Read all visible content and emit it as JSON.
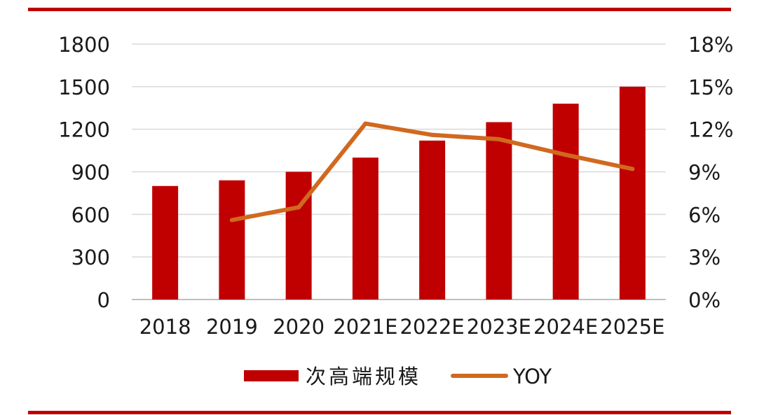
{
  "colors": {
    "bar": "#c00000",
    "line": "#d0691f",
    "rule": "#c00000",
    "grid": "#d9d9d9",
    "text": "#1a1a1a"
  },
  "chart_data": {
    "type": "bar",
    "categories": [
      "2018",
      "2019",
      "2020",
      "2021E",
      "2022E",
      "2023E",
      "2024E",
      "2025E"
    ],
    "series": [
      {
        "name": "次高端规模",
        "type": "bar",
        "axis": "left",
        "values": [
          800,
          840,
          900,
          1000,
          1120,
          1250,
          1380,
          1500
        ]
      },
      {
        "name": "YOY",
        "type": "line",
        "axis": "right",
        "values": [
          null,
          5.6,
          6.5,
          12.4,
          11.6,
          11.3,
          10.2,
          9.2
        ]
      }
    ],
    "ylim": [
      0,
      1800
    ],
    "yticks": [
      "0",
      "300",
      "600",
      "900",
      "1200",
      "1500",
      "1800"
    ],
    "y2lim": [
      0,
      18
    ],
    "y2ticks": [
      "0%",
      "3%",
      "6%",
      "9%",
      "12%",
      "15%",
      "18%"
    ],
    "grid": true,
    "legend_position": "bottom"
  }
}
